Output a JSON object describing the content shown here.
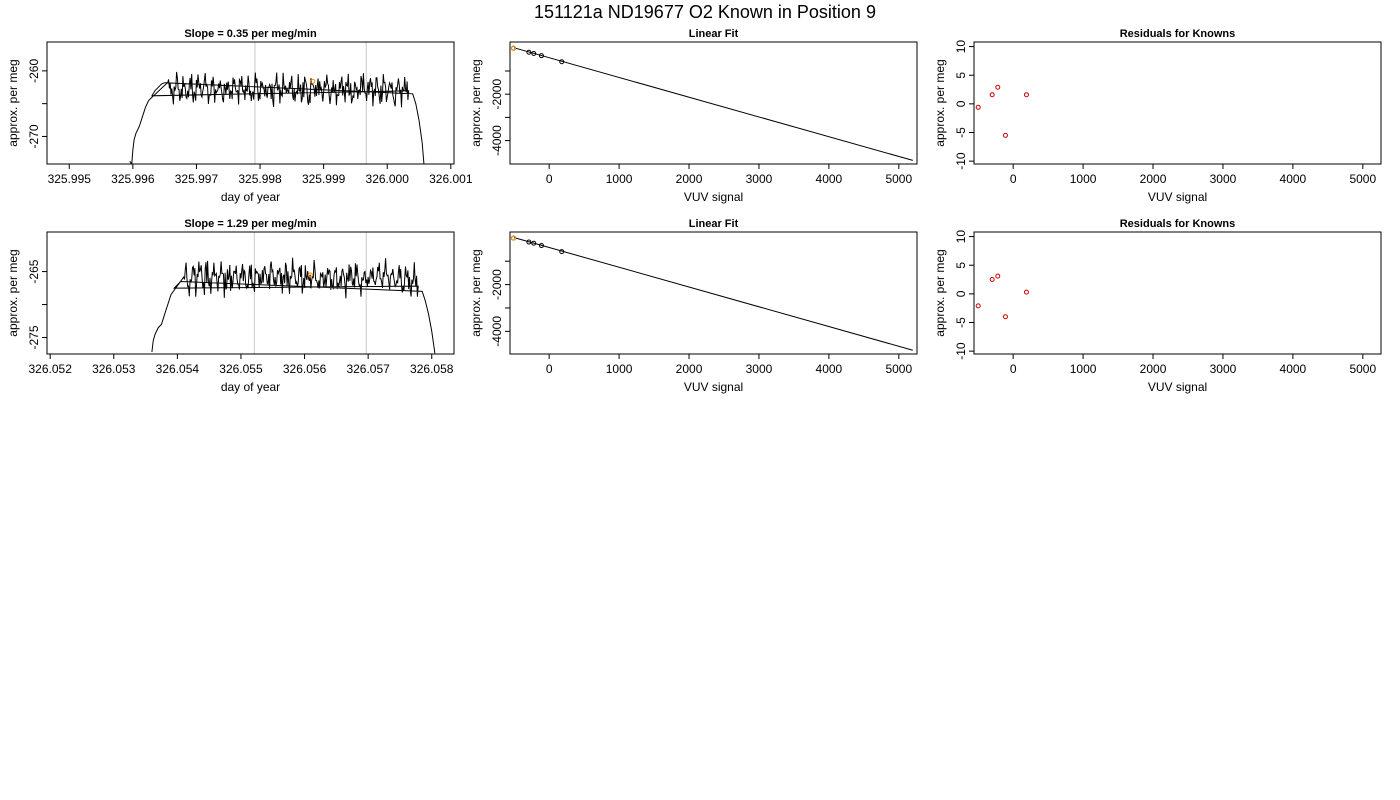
{
  "figure_title": "151121a     ND19677   O2 Known in Position  9",
  "colors": {
    "line": "#000000",
    "vline": "#c8c8c8",
    "known_point": "#000000",
    "highlight": "#ff8c00",
    "residual": "#cc0000"
  },
  "chart_data": [
    {
      "type": "line",
      "title": "Slope =  0.35  per meg/min",
      "xlabel": "day of year",
      "ylabel": "approx. per meg",
      "xlim": [
        325.99465,
        326.00105
      ],
      "ylim": [
        -274.2,
        -255.6
      ],
      "xticks": [
        325.995,
        325.996,
        325.997,
        325.998,
        325.999,
        326.0,
        326.001
      ],
      "xticklabels": [
        "325.995",
        "325.996",
        "325.997",
        "325.998",
        "325.999",
        "326.000",
        "326.001"
      ],
      "yticks": [
        -270,
        -265,
        -260
      ],
      "yticklabels": [
        "-270",
        "",
        "-260"
      ],
      "vlines": [
        325.99792,
        325.99967
      ],
      "trace_x": [
        325.99595,
        325.99597,
        325.99598,
        325.996,
        325.99602,
        325.99605,
        325.9961,
        325.99615,
        325.9962,
        325.99625,
        325.9963,
        325.99635,
        325.9964,
        325.99645,
        325.9965,
        326.0004,
        326.00045,
        326.0005,
        326.00055,
        326.00058
      ],
      "trace_y": [
        -273.8,
        -274.0,
        -274.5,
        -272.0,
        -270.5,
        -269.5,
        -268.5,
        -267.0,
        -265.5,
        -264.5,
        -263.8,
        -263.0,
        -262.5,
        -262.0,
        -261.8,
        -263.5,
        -265.0,
        -267.5,
        -271.0,
        -274.5
      ],
      "trace_body_start": 325.99655,
      "trace_body_end": 326.00035,
      "trace_base": -262.8,
      "trace_amp": 1.4,
      "highlight_point": {
        "x": 325.99883,
        "y": -261.6
      },
      "series": [
        {
          "values_from": "trace"
        }
      ]
    },
    {
      "type": "scatter",
      "title": "Linear Fit",
      "xlabel": "VUV signal",
      "ylabel": "approx. per meg",
      "xlim": [
        -560,
        5260
      ],
      "ylim": [
        -5010,
        250
      ],
      "xticks": [
        0,
        1000,
        2000,
        3000,
        4000,
        5000
      ],
      "xticklabels": [
        "0",
        "1000",
        "2000",
        "3000",
        "4000",
        "5000"
      ],
      "yticks": [
        -4000,
        -3000,
        -2000,
        -1000
      ],
      "yticklabels": [
        "-4000",
        "",
        "-2000",
        ""
      ],
      "fit_line": {
        "x1": -500,
        "y1": 0,
        "x2": 5200,
        "y2": -4855
      },
      "points_x": [
        -510,
        -290,
        -220,
        -110,
        180
      ],
      "points_y": [
        -20,
        -190,
        -245,
        -340,
        -600
      ],
      "highlight_point": {
        "x": -510,
        "y": -20
      }
    },
    {
      "type": "scatter",
      "title": "Residuals for Knowns",
      "xlabel": "VUV signal",
      "ylabel": "approx. per meg",
      "xlim": [
        -560,
        5260
      ],
      "ylim": [
        -10.5,
        10.8
      ],
      "xticks": [
        0,
        1000,
        2000,
        3000,
        4000,
        5000
      ],
      "xticklabels": [
        "0",
        "1000",
        "2000",
        "3000",
        "4000",
        "5000"
      ],
      "yticks": [
        -10,
        -5,
        0,
        5,
        10
      ],
      "yticklabels": [
        "-10",
        "-5",
        "0",
        "5",
        "10"
      ],
      "points_x": [
        -500,
        -300,
        -220,
        -110,
        190
      ],
      "points_y": [
        -0.6,
        1.6,
        2.9,
        -5.5,
        1.6
      ]
    },
    {
      "type": "line",
      "title": "Slope =  1.29  per meg/min",
      "xlabel": "day of year",
      "ylabel": "approx. per meg",
      "xlim": [
        326.05195,
        326.05835
      ],
      "ylim": [
        -277.5,
        -259.0
      ],
      "xticks": [
        326.052,
        326.053,
        326.054,
        326.055,
        326.056,
        326.057,
        326.058
      ],
      "xticklabels": [
        "326.052",
        "326.053",
        "326.054",
        "326.055",
        "326.056",
        "326.057",
        "326.058"
      ],
      "yticks": [
        -275,
        -270,
        -265
      ],
      "yticklabels": [
        "-275",
        "",
        "-265"
      ],
      "vlines": [
        326.05521,
        326.05697
      ],
      "trace_x": [
        326.0536,
        326.05362,
        326.05365,
        326.0537,
        326.05375,
        326.0538,
        326.05385,
        326.0539,
        326.05395,
        326.054,
        326.05405,
        326.05785,
        326.0579,
        326.05795,
        326.058,
        326.05805
      ],
      "trace_y": [
        -277.2,
        -275.5,
        -274.5,
        -273.5,
        -273.0,
        -271.5,
        -270.0,
        -268.5,
        -267.5,
        -267.0,
        -266.5,
        -268.0,
        -269.5,
        -271.5,
        -274.0,
        -277.4
      ],
      "trace_body_start": 326.0541,
      "trace_body_end": 326.0578,
      "trace_base": -266.0,
      "trace_amp": 1.5,
      "highlight_point": {
        "x": 326.05609,
        "y": -265.5
      }
    },
    {
      "type": "scatter",
      "title": "Linear Fit",
      "xlabel": "VUV signal",
      "ylabel": "approx. per meg",
      "xlim": [
        -560,
        5260
      ],
      "ylim": [
        -4970,
        250
      ],
      "xticks": [
        0,
        1000,
        2000,
        3000,
        4000,
        5000
      ],
      "xticklabels": [
        "0",
        "1000",
        "2000",
        "3000",
        "4000",
        "5000"
      ],
      "yticks": [
        -4000,
        -3000,
        -2000,
        -1000
      ],
      "yticklabels": [
        "-4000",
        "",
        "-2000",
        ""
      ],
      "fit_line": {
        "x1": -500,
        "y1": 10,
        "x2": 5200,
        "y2": -4810
      },
      "points_x": [
        -510,
        -290,
        -220,
        -110,
        180
      ],
      "points_y": [
        -10,
        -180,
        -230,
        -330,
        -590
      ],
      "highlight_point": {
        "x": -510,
        "y": -10
      }
    },
    {
      "type": "scatter",
      "title": "Residuals for Knowns",
      "xlabel": "VUV signal",
      "ylabel": "approx. per meg",
      "xlim": [
        -560,
        5260
      ],
      "ylim": [
        -10.5,
        10.8
      ],
      "xticks": [
        0,
        1000,
        2000,
        3000,
        4000,
        5000
      ],
      "xticklabels": [
        "0",
        "1000",
        "2000",
        "3000",
        "4000",
        "5000"
      ],
      "yticks": [
        -10,
        -5,
        0,
        5,
        10
      ],
      "yticklabels": [
        "-10",
        "-5",
        "0",
        "5",
        "10"
      ],
      "points_x": [
        -500,
        -300,
        -220,
        -110,
        190
      ],
      "points_y": [
        -2.1,
        2.5,
        3.1,
        -4.0,
        0.3
      ]
    }
  ]
}
